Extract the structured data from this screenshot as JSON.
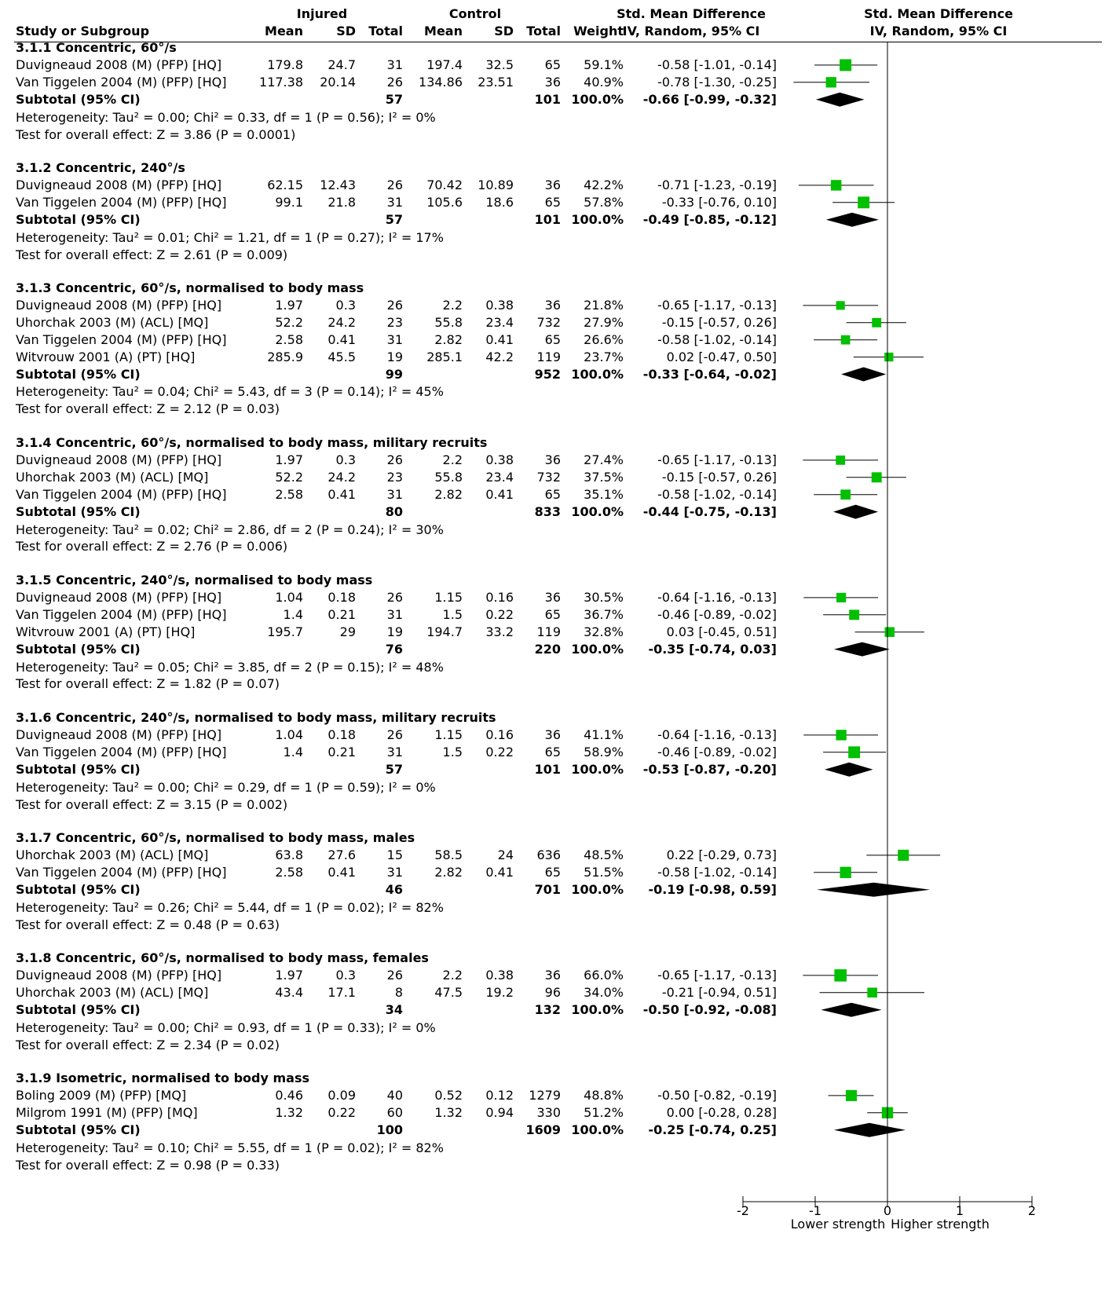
{
  "header": {
    "group1": "Injured",
    "group2": "Control",
    "effect_title": "Std. Mean Difference",
    "plot_title": "Std. Mean Difference",
    "columns": [
      "Study or Subgroup",
      "Mean",
      "SD",
      "Total",
      "Mean",
      "SD",
      "Total",
      "Weight",
      "IV, Random, 95% CI",
      "IV, Random, 95% CI"
    ]
  },
  "subgroups": [
    {
      "title": "3.1.1 Concentric, 60°/s",
      "studies": [
        {
          "name": "Duvigneaud 2008 (M) (PFP) [HQ]",
          "m1": "179.8",
          "sd1": "24.7",
          "n1": "31",
          "m2": "197.4",
          "sd2": "32.5",
          "n2": "65",
          "weight": "59.1%",
          "ci": "-0.58 [-1.01, -0.14]"
        },
        {
          "name": "Van Tiggelen 2004 (M) (PFP) [HQ]",
          "m1": "117.38",
          "sd1": "20.14",
          "n1": "26",
          "m2": "134.86",
          "sd2": "23.51",
          "n2": "36",
          "weight": "40.9%",
          "ci": "-0.78 [-1.30, -0.25]"
        }
      ],
      "subtotal": {
        "label": "Subtotal (95% CI)",
        "n1": "57",
        "n2": "101",
        "weight": "100.0%",
        "ci": "-0.66 [-0.99, -0.32]"
      },
      "heterogeneity": "Heterogeneity: Tau² = 0.00; Chi² = 0.33, df = 1 (P = 0.56); I² = 0%",
      "overall": "Test for overall effect: Z = 3.86 (P = 0.0001)"
    },
    {
      "title": "3.1.2 Concentric, 240°/s",
      "studies": [
        {
          "name": "Duvigneaud 2008 (M) (PFP) [HQ]",
          "m1": "62.15",
          "sd1": "12.43",
          "n1": "26",
          "m2": "70.42",
          "sd2": "10.89",
          "n2": "36",
          "weight": "42.2%",
          "ci": "-0.71 [-1.23, -0.19]"
        },
        {
          "name": "Van Tiggelen 2004 (M) (PFP) [HQ]",
          "m1": "99.1",
          "sd1": "21.8",
          "n1": "31",
          "m2": "105.6",
          "sd2": "18.6",
          "n2": "65",
          "weight": "57.8%",
          "ci": "-0.33 [-0.76, 0.10]"
        }
      ],
      "subtotal": {
        "label": "Subtotal (95% CI)",
        "n1": "57",
        "n2": "101",
        "weight": "100.0%",
        "ci": "-0.49 [-0.85, -0.12]"
      },
      "heterogeneity": "Heterogeneity: Tau² = 0.01; Chi² = 1.21, df = 1 (P = 0.27); I² = 17%",
      "overall": "Test for overall effect: Z = 2.61 (P = 0.009)"
    },
    {
      "title": "3.1.3 Concentric, 60°/s, normalised to body mass",
      "studies": [
        {
          "name": "Duvigneaud 2008 (M) (PFP) [HQ]",
          "m1": "1.97",
          "sd1": "0.3",
          "n1": "26",
          "m2": "2.2",
          "sd2": "0.38",
          "n2": "36",
          "weight": "21.8%",
          "ci": "-0.65 [-1.17, -0.13]"
        },
        {
          "name": "Uhorchak 2003 (M) (ACL) [MQ]",
          "m1": "52.2",
          "sd1": "24.2",
          "n1": "23",
          "m2": "55.8",
          "sd2": "23.4",
          "n2": "732",
          "weight": "27.9%",
          "ci": "-0.15 [-0.57, 0.26]"
        },
        {
          "name": "Van Tiggelen 2004 (M) (PFP) [HQ]",
          "m1": "2.58",
          "sd1": "0.41",
          "n1": "31",
          "m2": "2.82",
          "sd2": "0.41",
          "n2": "65",
          "weight": "26.6%",
          "ci": "-0.58 [-1.02, -0.14]"
        },
        {
          "name": "Witvrouw 2001 (A) (PT) [HQ]",
          "m1": "285.9",
          "sd1": "45.5",
          "n1": "19",
          "m2": "285.1",
          "sd2": "42.2",
          "n2": "119",
          "weight": "23.7%",
          "ci": "0.02 [-0.47, 0.50]"
        }
      ],
      "subtotal": {
        "label": "Subtotal (95% CI)",
        "n1": "99",
        "n2": "952",
        "weight": "100.0%",
        "ci": "-0.33 [-0.64, -0.02]"
      },
      "heterogeneity": "Heterogeneity: Tau² = 0.04; Chi² = 5.43, df = 3 (P = 0.14); I² = 45%",
      "overall": "Test for overall effect: Z = 2.12 (P = 0.03)"
    },
    {
      "title": "3.1.4 Concentric, 60°/s, normalised to body mass, military recruits",
      "studies": [
        {
          "name": "Duvigneaud 2008 (M) (PFP) [HQ]",
          "m1": "1.97",
          "sd1": "0.3",
          "n1": "26",
          "m2": "2.2",
          "sd2": "0.38",
          "n2": "36",
          "weight": "27.4%",
          "ci": "-0.65 [-1.17, -0.13]"
        },
        {
          "name": "Uhorchak 2003 (M) (ACL) [MQ]",
          "m1": "52.2",
          "sd1": "24.2",
          "n1": "23",
          "m2": "55.8",
          "sd2": "23.4",
          "n2": "732",
          "weight": "37.5%",
          "ci": "-0.15 [-0.57, 0.26]"
        },
        {
          "name": "Van Tiggelen 2004 (M) (PFP) [HQ]",
          "m1": "2.58",
          "sd1": "0.41",
          "n1": "31",
          "m2": "2.82",
          "sd2": "0.41",
          "n2": "65",
          "weight": "35.1%",
          "ci": "-0.58 [-1.02, -0.14]"
        }
      ],
      "subtotal": {
        "label": "Subtotal (95% CI)",
        "n1": "80",
        "n2": "833",
        "weight": "100.0%",
        "ci": "-0.44 [-0.75, -0.13]"
      },
      "heterogeneity": "Heterogeneity: Tau² = 0.02; Chi² = 2.86, df = 2 (P = 0.24); I² = 30%",
      "overall": "Test for overall effect: Z = 2.76 (P = 0.006)"
    },
    {
      "title": "3.1.5 Concentric, 240°/s, normalised to body mass",
      "studies": [
        {
          "name": "Duvigneaud 2008 (M) (PFP) [HQ]",
          "m1": "1.04",
          "sd1": "0.18",
          "n1": "26",
          "m2": "1.15",
          "sd2": "0.16",
          "n2": "36",
          "weight": "30.5%",
          "ci": "-0.64 [-1.16, -0.13]"
        },
        {
          "name": "Van Tiggelen 2004 (M) (PFP) [HQ]",
          "m1": "1.4",
          "sd1": "0.21",
          "n1": "31",
          "m2": "1.5",
          "sd2": "0.22",
          "n2": "65",
          "weight": "36.7%",
          "ci": "-0.46 [-0.89, -0.02]"
        },
        {
          "name": "Witvrouw 2001 (A) (PT) [HQ]",
          "m1": "195.7",
          "sd1": "29",
          "n1": "19",
          "m2": "194.7",
          "sd2": "33.2",
          "n2": "119",
          "weight": "32.8%",
          "ci": "0.03 [-0.45, 0.51]"
        }
      ],
      "subtotal": {
        "label": "Subtotal (95% CI)",
        "n1": "76",
        "n2": "220",
        "weight": "100.0%",
        "ci": "-0.35 [-0.74, 0.03]"
      },
      "heterogeneity": "Heterogeneity: Tau² = 0.05; Chi² = 3.85, df = 2 (P = 0.15); I² = 48%",
      "overall": "Test for overall effect: Z = 1.82 (P = 0.07)"
    },
    {
      "title": "3.1.6 Concentric, 240°/s, normalised to body mass, military recruits",
      "studies": [
        {
          "name": "Duvigneaud 2008 (M) (PFP) [HQ]",
          "m1": "1.04",
          "sd1": "0.18",
          "n1": "26",
          "m2": "1.15",
          "sd2": "0.16",
          "n2": "36",
          "weight": "41.1%",
          "ci": "-0.64 [-1.16, -0.13]"
        },
        {
          "name": "Van Tiggelen 2004 (M) (PFP) [HQ]",
          "m1": "1.4",
          "sd1": "0.21",
          "n1": "31",
          "m2": "1.5",
          "sd2": "0.22",
          "n2": "65",
          "weight": "58.9%",
          "ci": "-0.46 [-0.89, -0.02]"
        }
      ],
      "subtotal": {
        "label": "Subtotal (95% CI)",
        "n1": "57",
        "n2": "101",
        "weight": "100.0%",
        "ci": "-0.53 [-0.87, -0.20]"
      },
      "heterogeneity": "Heterogeneity: Tau² = 0.00; Chi² = 0.29, df = 1 (P = 0.59); I² = 0%",
      "overall": "Test for overall effect: Z = 3.15 (P = 0.002)"
    },
    {
      "title": "3.1.7 Concentric, 60°/s, normalised to body mass, males",
      "studies": [
        {
          "name": "Uhorchak 2003 (M) (ACL) [MQ]",
          "m1": "63.8",
          "sd1": "27.6",
          "n1": "15",
          "m2": "58.5",
          "sd2": "24",
          "n2": "636",
          "weight": "48.5%",
          "ci": "0.22 [-0.29, 0.73]"
        },
        {
          "name": "Van Tiggelen 2004 (M) (PFP) [HQ]",
          "m1": "2.58",
          "sd1": "0.41",
          "n1": "31",
          "m2": "2.82",
          "sd2": "0.41",
          "n2": "65",
          "weight": "51.5%",
          "ci": "-0.58 [-1.02, -0.14]"
        }
      ],
      "subtotal": {
        "label": "Subtotal (95% CI)",
        "n1": "46",
        "n2": "701",
        "weight": "100.0%",
        "ci": "-0.19 [-0.98, 0.59]"
      },
      "heterogeneity": "Heterogeneity: Tau² = 0.26; Chi² = 5.44, df = 1 (P = 0.02); I² = 82%",
      "overall": "Test for overall effect: Z = 0.48 (P = 0.63)"
    },
    {
      "title": "3.1.8 Concentric, 60°/s, normalised to body mass, females",
      "studies": [
        {
          "name": "Duvigneaud 2008 (M) (PFP) [HQ]",
          "m1": "1.97",
          "sd1": "0.3",
          "n1": "26",
          "m2": "2.2",
          "sd2": "0.38",
          "n2": "36",
          "weight": "66.0%",
          "ci": "-0.65 [-1.17, -0.13]"
        },
        {
          "name": "Uhorchak 2003 (M) (ACL) [MQ]",
          "m1": "43.4",
          "sd1": "17.1",
          "n1": "8",
          "m2": "47.5",
          "sd2": "19.2",
          "n2": "96",
          "weight": "34.0%",
          "ci": "-0.21 [-0.94, 0.51]"
        }
      ],
      "subtotal": {
        "label": "Subtotal (95% CI)",
        "n1": "34",
        "n2": "132",
        "weight": "100.0%",
        "ci": "-0.50 [-0.92, -0.08]"
      },
      "heterogeneity": "Heterogeneity: Tau² = 0.00; Chi² = 0.93, df = 1 (P = 0.33); I² = 0%",
      "overall": "Test for overall effect: Z = 2.34 (P = 0.02)"
    },
    {
      "title": "3.1.9 Isometric, normalised to body mass",
      "studies": [
        {
          "name": "Boling 2009 (M) (PFP) [MQ]",
          "m1": "0.46",
          "sd1": "0.09",
          "n1": "40",
          "m2": "0.52",
          "sd2": "0.12",
          "n2": "1279",
          "weight": "48.8%",
          "ci": "-0.50 [-0.82, -0.19]"
        },
        {
          "name": "Milgrom 1991 (M) (PFP) [MQ]",
          "m1": "1.32",
          "sd1": "0.22",
          "n1": "60",
          "m2": "1.32",
          "sd2": "0.94",
          "n2": "330",
          "weight": "51.2%",
          "ci": "0.00 [-0.28, 0.28]"
        }
      ],
      "subtotal": {
        "label": "Subtotal (95% CI)",
        "n1": "100",
        "n2": "1609",
        "weight": "100.0%",
        "ci": "-0.25 [-0.74, 0.25]"
      },
      "heterogeneity": "Heterogeneity: Tau² = 0.10; Chi² = 5.55, df = 1 (P = 0.02); I² = 82%",
      "overall": "Test for overall effect: Z = 0.98 (P = 0.33)"
    }
  ],
  "axis": {
    "ticks": [
      "-2",
      "-1",
      "0",
      "1",
      "2"
    ],
    "left_label": "Lower strength",
    "right_label": "Higher strength"
  },
  "colors": {
    "marker": "#00c000",
    "diamond": "#000000",
    "line": "#000000"
  },
  "chart_data": {
    "type": "forest",
    "xlim": [
      -2,
      2
    ],
    "xlabel_left": "Lower strength",
    "xlabel_right": "Higher strength",
    "groups": [
      {
        "name": "3.1.1 Concentric, 60°/s",
        "studies": [
          {
            "est": -0.58,
            "lo": -1.01,
            "hi": -0.14,
            "weight": 59.1
          },
          {
            "est": -0.78,
            "lo": -1.3,
            "hi": -0.25,
            "weight": 40.9
          }
        ],
        "pooled": {
          "est": -0.66,
          "lo": -0.99,
          "hi": -0.32
        }
      },
      {
        "name": "3.1.2 Concentric, 240°/s",
        "studies": [
          {
            "est": -0.71,
            "lo": -1.23,
            "hi": -0.19,
            "weight": 42.2
          },
          {
            "est": -0.33,
            "lo": -0.76,
            "hi": 0.1,
            "weight": 57.8
          }
        ],
        "pooled": {
          "est": -0.49,
          "lo": -0.85,
          "hi": -0.12
        }
      },
      {
        "name": "3.1.3 Concentric, 60°/s, normalised to body mass",
        "studies": [
          {
            "est": -0.65,
            "lo": -1.17,
            "hi": -0.13,
            "weight": 21.8
          },
          {
            "est": -0.15,
            "lo": -0.57,
            "hi": 0.26,
            "weight": 27.9
          },
          {
            "est": -0.58,
            "lo": -1.02,
            "hi": -0.14,
            "weight": 26.6
          },
          {
            "est": 0.02,
            "lo": -0.47,
            "hi": 0.5,
            "weight": 23.7
          }
        ],
        "pooled": {
          "est": -0.33,
          "lo": -0.64,
          "hi": -0.02
        }
      },
      {
        "name": "3.1.4 Concentric, 60°/s, normalised to body mass, military recruits",
        "studies": [
          {
            "est": -0.65,
            "lo": -1.17,
            "hi": -0.13,
            "weight": 27.4
          },
          {
            "est": -0.15,
            "lo": -0.57,
            "hi": 0.26,
            "weight": 37.5
          },
          {
            "est": -0.58,
            "lo": -1.02,
            "hi": -0.14,
            "weight": 35.1
          }
        ],
        "pooled": {
          "est": -0.44,
          "lo": -0.75,
          "hi": -0.13
        }
      },
      {
        "name": "3.1.5 Concentric, 240°/s, normalised to body mass",
        "studies": [
          {
            "est": -0.64,
            "lo": -1.16,
            "hi": -0.13,
            "weight": 30.5
          },
          {
            "est": -0.46,
            "lo": -0.89,
            "hi": -0.02,
            "weight": 36.7
          },
          {
            "est": 0.03,
            "lo": -0.45,
            "hi": 0.51,
            "weight": 32.8
          }
        ],
        "pooled": {
          "est": -0.35,
          "lo": -0.74,
          "hi": 0.03
        }
      },
      {
        "name": "3.1.6 Concentric, 240°/s, normalised to body mass, military recruits",
        "studies": [
          {
            "est": -0.64,
            "lo": -1.16,
            "hi": -0.13,
            "weight": 41.1
          },
          {
            "est": -0.46,
            "lo": -0.89,
            "hi": -0.02,
            "weight": 58.9
          }
        ],
        "pooled": {
          "est": -0.53,
          "lo": -0.87,
          "hi": -0.2
        }
      },
      {
        "name": "3.1.7 Concentric, 60°/s, normalised to body mass, males",
        "studies": [
          {
            "est": 0.22,
            "lo": -0.29,
            "hi": 0.73,
            "weight": 48.5
          },
          {
            "est": -0.58,
            "lo": -1.02,
            "hi": -0.14,
            "weight": 51.5
          }
        ],
        "pooled": {
          "est": -0.19,
          "lo": -0.98,
          "hi": 0.59
        }
      },
      {
        "name": "3.1.8 Concentric, 60°/s, normalised to body mass, females",
        "studies": [
          {
            "est": -0.65,
            "lo": -1.17,
            "hi": -0.13,
            "weight": 66.0
          },
          {
            "est": -0.21,
            "lo": -0.94,
            "hi": 0.51,
            "weight": 34.0
          }
        ],
        "pooled": {
          "est": -0.5,
          "lo": -0.92,
          "hi": -0.08
        }
      },
      {
        "name": "3.1.9 Isometric, normalised to body mass",
        "studies": [
          {
            "est": -0.5,
            "lo": -0.82,
            "hi": -0.19,
            "weight": 48.8
          },
          {
            "est": 0.0,
            "lo": -0.28,
            "hi": 0.28,
            "weight": 51.2
          }
        ],
        "pooled": {
          "est": -0.25,
          "lo": -0.74,
          "hi": 0.25
        }
      }
    ]
  }
}
